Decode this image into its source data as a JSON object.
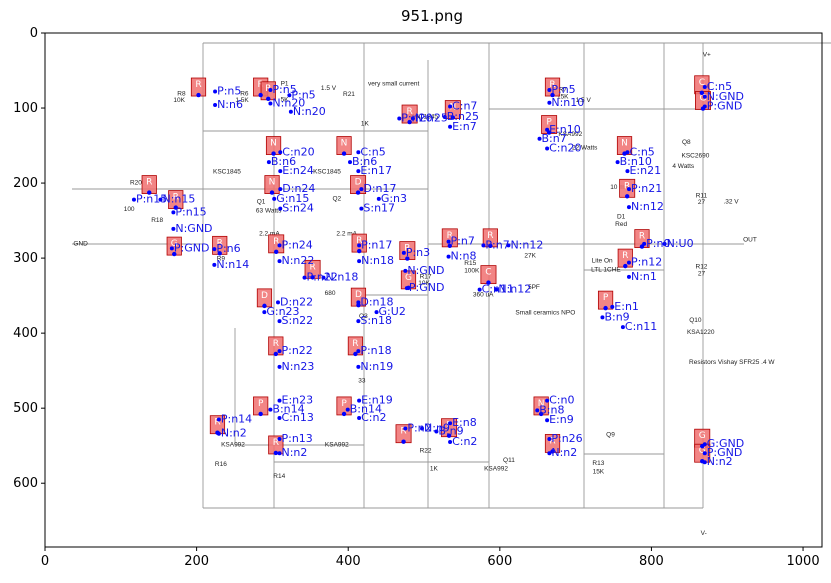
{
  "plot": {
    "title": "951.png",
    "x_ticks": [
      "0",
      "200",
      "400",
      "600",
      "800",
      "1000"
    ],
    "y_ticks": [
      "0",
      "100",
      "200",
      "300",
      "400",
      "500",
      "600"
    ],
    "xlim": [
      0,
      1025
    ],
    "ylim": [
      685,
      0
    ]
  },
  "schematic_text": [
    {
      "t": "R8",
      "x": 180,
      "y": 83
    },
    {
      "t": "10K",
      "x": 177,
      "y": 92
    },
    {
      "t": "R6",
      "x": 263,
      "y": 83
    },
    {
      "t": "1.5K",
      "x": 260,
      "y": 92
    },
    {
      "t": "P1",
      "x": 316,
      "y": 70
    },
    {
      "t": "5K",
      "x": 316,
      "y": 91
    },
    {
      "t": "1.5 V",
      "x": 374,
      "y": 76
    },
    {
      "t": "very small current",
      "x": 460,
      "y": 70
    },
    {
      "t": "R21",
      "x": 401,
      "y": 84
    },
    {
      "t": "1K",
      "x": 422,
      "y": 123
    },
    {
      "t": "KSC1845",
      "x": 500,
      "y": 114
    },
    {
      "t": "R7",
      "x": 683,
      "y": 78
    },
    {
      "t": "15K",
      "x": 683,
      "y": 87
    },
    {
      "t": "1.5 V",
      "x": 710,
      "y": 92
    },
    {
      "t": "V+",
      "x": 873,
      "y": 31
    },
    {
      "t": "KSA992",
      "x": 693,
      "y": 137
    },
    {
      "t": "22 Watts",
      "x": 712,
      "y": 155
    },
    {
      "t": "Q8",
      "x": 846,
      "y": 148
    },
    {
      "t": "KSC2690",
      "x": 858,
      "y": 166
    },
    {
      "t": "4 Watts",
      "x": 842,
      "y": 180
    },
    {
      "t": "KSC1845",
      "x": 240,
      "y": 187
    },
    {
      "t": "KSC1845",
      "x": 372,
      "y": 187
    },
    {
      "t": "R20",
      "x": 120,
      "y": 202
    },
    {
      "t": "100",
      "x": 111,
      "y": 237
    },
    {
      "t": "R18",
      "x": 148,
      "y": 252
    },
    {
      "t": "Q1",
      "x": 285,
      "y": 227
    },
    {
      "t": "63 Watts",
      "x": 295,
      "y": 239
    },
    {
      "t": "Q2",
      "x": 385,
      "y": 223
    },
    {
      "t": "10 mA",
      "x": 758,
      "y": 208
    },
    {
      "t": "R11",
      "x": 866,
      "y": 219
    },
    {
      "t": "27",
      "x": 866,
      "y": 228
    },
    {
      "t": ".32 V",
      "x": 905,
      "y": 227
    },
    {
      "t": "D1",
      "x": 760,
      "y": 247
    },
    {
      "t": "Red",
      "x": 760,
      "y": 257
    },
    {
      "t": "GND",
      "x": 47,
      "y": 283
    },
    {
      "t": "2.2 mA",
      "x": 296,
      "y": 270
    },
    {
      "t": "2.2 mA",
      "x": 398,
      "y": 270
    },
    {
      "t": "OUT",
      "x": 930,
      "y": 278
    },
    {
      "t": "R9",
      "x": 232,
      "y": 303
    },
    {
      "t": "R12",
      "x": 866,
      "y": 314
    },
    {
      "t": "27",
      "x": 866,
      "y": 323
    },
    {
      "t": "R15",
      "x": 561,
      "y": 309
    },
    {
      "t": "100K",
      "x": 563,
      "y": 319
    },
    {
      "t": "27K",
      "x": 640,
      "y": 299
    },
    {
      "t": "Lite On",
      "x": 735,
      "y": 306
    },
    {
      "t": "LTL 1CHE",
      "x": 740,
      "y": 318
    },
    {
      "t": "R17",
      "x": 502,
      "y": 327
    },
    {
      "t": "10K",
      "x": 500,
      "y": 336
    },
    {
      "t": "680",
      "x": 376,
      "y": 349
    },
    {
      "t": "360 uA",
      "x": 578,
      "y": 351
    },
    {
      "t": "5PF",
      "x": 645,
      "y": 341
    },
    {
      "t": "Small ceramics NPO",
      "x": 660,
      "y": 375
    },
    {
      "t": "Q3",
      "x": 420,
      "y": 380
    },
    {
      "t": "Q10",
      "x": 858,
      "y": 385
    },
    {
      "t": "KSA1220",
      "x": 865,
      "y": 401
    },
    {
      "t": "Resistors Vishay SFR25 .4 W",
      "x": 906,
      "y": 441
    },
    {
      "t": "33",
      "x": 418,
      "y": 466
    },
    {
      "t": "KSA992",
      "x": 248,
      "y": 551
    },
    {
      "t": "KSA992",
      "x": 385,
      "y": 551
    },
    {
      "t": "Q9",
      "x": 746,
      "y": 538
    },
    {
      "t": "R22",
      "x": 502,
      "y": 559
    },
    {
      "t": "1K",
      "x": 513,
      "y": 583
    },
    {
      "t": "Q11",
      "x": 612,
      "y": 572
    },
    {
      "t": "KSA992",
      "x": 595,
      "y": 583
    },
    {
      "t": "R13",
      "x": 730,
      "y": 576
    },
    {
      "t": "15K",
      "x": 730,
      "y": 587
    },
    {
      "t": "R16",
      "x": 232,
      "y": 577
    },
    {
      "t": "R14",
      "x": 309,
      "y": 593
    },
    {
      "t": "V-",
      "x": 869,
      "y": 669
    }
  ],
  "components": [
    {
      "label": "R",
      "x1": 193,
      "y1": 60,
      "x2": 212,
      "y2": 84
    },
    {
      "label": "R",
      "x1": 275,
      "y1": 60,
      "x2": 294,
      "y2": 84
    },
    {
      "label": "R",
      "x1": 285,
      "y1": 65,
      "x2": 304,
      "y2": 89
    },
    {
      "label": "R",
      "x1": 471,
      "y1": 96,
      "x2": 491,
      "y2": 120
    },
    {
      "label": "N",
      "x1": 528,
      "y1": 90,
      "x2": 548,
      "y2": 114
    },
    {
      "label": "R",
      "x1": 660,
      "y1": 60,
      "x2": 679,
      "y2": 84
    },
    {
      "label": "C",
      "x1": 857,
      "y1": 57,
      "x2": 876,
      "y2": 81
    },
    {
      "label": "G",
      "x1": 858,
      "y1": 78,
      "x2": 878,
      "y2": 102
    },
    {
      "label": "P",
      "x1": 655,
      "y1": 110,
      "x2": 675,
      "y2": 134
    },
    {
      "label": "N",
      "x1": 292,
      "y1": 138,
      "x2": 311,
      "y2": 162
    },
    {
      "label": "N",
      "x1": 385,
      "y1": 138,
      "x2": 404,
      "y2": 162
    },
    {
      "label": "N",
      "x1": 755,
      "y1": 138,
      "x2": 774,
      "y2": 162
    },
    {
      "label": "R",
      "x1": 128,
      "y1": 190,
      "x2": 147,
      "y2": 214
    },
    {
      "label": "R",
      "x1": 163,
      "y1": 210,
      "x2": 182,
      "y2": 234
    },
    {
      "label": "N",
      "x1": 290,
      "y1": 190,
      "x2": 309,
      "y2": 214
    },
    {
      "label": "D",
      "x1": 403,
      "y1": 190,
      "x2": 423,
      "y2": 214
    },
    {
      "label": "R",
      "x1": 758,
      "y1": 195,
      "x2": 778,
      "y2": 219
    },
    {
      "label": "R",
      "x1": 778,
      "y1": 262,
      "x2": 797,
      "y2": 286
    },
    {
      "label": "G",
      "x1": 161,
      "y1": 272,
      "x2": 180,
      "y2": 296
    },
    {
      "label": "R",
      "x1": 221,
      "y1": 271,
      "x2": 240,
      "y2": 295
    },
    {
      "label": "R",
      "x1": 295,
      "y1": 269,
      "x2": 315,
      "y2": 293
    },
    {
      "label": "R",
      "x1": 405,
      "y1": 268,
      "x2": 424,
      "y2": 292
    },
    {
      "label": "R",
      "x1": 524,
      "y1": 261,
      "x2": 544,
      "y2": 285
    },
    {
      "label": "R",
      "x1": 578,
      "y1": 261,
      "x2": 597,
      "y2": 285
    },
    {
      "label": "R",
      "x1": 468,
      "y1": 278,
      "x2": 488,
      "y2": 302
    },
    {
      "label": "R",
      "x1": 343,
      "y1": 303,
      "x2": 363,
      "y2": 327
    },
    {
      "label": "C",
      "x1": 575,
      "y1": 310,
      "x2": 595,
      "y2": 334
    },
    {
      "label": "R",
      "x1": 756,
      "y1": 288,
      "x2": 775,
      "y2": 312
    },
    {
      "label": "G",
      "x1": 470,
      "y1": 317,
      "x2": 489,
      "y2": 341
    },
    {
      "label": "D",
      "x1": 280,
      "y1": 341,
      "x2": 299,
      "y2": 365
    },
    {
      "label": "D",
      "x1": 404,
      "y1": 340,
      "x2": 423,
      "y2": 364
    },
    {
      "label": "P",
      "x1": 730,
      "y1": 344,
      "x2": 749,
      "y2": 368
    },
    {
      "label": "R",
      "x1": 295,
      "y1": 405,
      "x2": 314,
      "y2": 429
    },
    {
      "label": "R",
      "x1": 400,
      "y1": 405,
      "x2": 419,
      "y2": 429
    },
    {
      "label": "P",
      "x1": 275,
      "y1": 485,
      "x2": 294,
      "y2": 509
    },
    {
      "label": "P",
      "x1": 385,
      "y1": 485,
      "x2": 404,
      "y2": 509
    },
    {
      "label": "N",
      "x1": 645,
      "y1": 485,
      "x2": 664,
      "y2": 509
    },
    {
      "label": "R",
      "x1": 218,
      "y1": 510,
      "x2": 237,
      "y2": 534
    },
    {
      "label": "R",
      "x1": 463,
      "y1": 522,
      "x2": 483,
      "y2": 546
    },
    {
      "label": "P",
      "x1": 523,
      "y1": 514,
      "x2": 543,
      "y2": 538
    },
    {
      "label": "R",
      "x1": 295,
      "y1": 537,
      "x2": 314,
      "y2": 561
    },
    {
      "label": "R",
      "x1": 660,
      "y1": 535,
      "x2": 679,
      "y2": 559
    },
    {
      "label": "G",
      "x1": 857,
      "y1": 528,
      "x2": 877,
      "y2": 552
    },
    {
      "label": "G",
      "x1": 857,
      "y1": 548,
      "x2": 877,
      "y2": 572
    }
  ],
  "pin_labels": [
    {
      "t": "P:n5",
      "x": 227,
      "y": 82
    },
    {
      "t": "N:n6",
      "x": 227,
      "y": 100
    },
    {
      "t": "P:n5",
      "x": 300,
      "y": 80
    },
    {
      "t": "P:n5",
      "x": 325,
      "y": 87
    },
    {
      "t": "N:n20",
      "x": 300,
      "y": 98
    },
    {
      "t": "N:n20",
      "x": 327,
      "y": 109
    },
    {
      "t": "P:n20",
      "x": 470,
      "y": 118
    },
    {
      "t": "N:n25",
      "x": 488,
      "y": 118
    },
    {
      "t": "C:n7",
      "x": 537,
      "y": 102
    },
    {
      "t": "B:n25",
      "x": 530,
      "y": 116
    },
    {
      "t": "E:n7",
      "x": 537,
      "y": 129
    },
    {
      "t": "P:n5",
      "x": 668,
      "y": 80
    },
    {
      "t": "N:n10",
      "x": 668,
      "y": 97
    },
    {
      "t": "C:n5",
      "x": 873,
      "y": 76
    },
    {
      "t": "N:GND",
      "x": 873,
      "y": 89
    },
    {
      "t": "P:GND",
      "x": 873,
      "y": 102
    },
    {
      "t": "E:n10",
      "x": 665,
      "y": 133
    },
    {
      "t": "B:n7",
      "x": 655,
      "y": 145
    },
    {
      "t": "C:n20",
      "x": 665,
      "y": 158
    },
    {
      "t": "C:n20",
      "x": 313,
      "y": 163
    },
    {
      "t": "B:n6",
      "x": 298,
      "y": 176
    },
    {
      "t": "E:n24",
      "x": 313,
      "y": 188
    },
    {
      "t": "C:n5",
      "x": 416,
      "y": 163
    },
    {
      "t": "B:n6",
      "x": 405,
      "y": 176
    },
    {
      "t": "E:n17",
      "x": 416,
      "y": 188
    },
    {
      "t": "C:n5",
      "x": 771,
      "y": 163
    },
    {
      "t": "B:n10",
      "x": 758,
      "y": 176
    },
    {
      "t": "E:n21",
      "x": 771,
      "y": 188
    },
    {
      "t": "D:n24",
      "x": 313,
      "y": 212
    },
    {
      "t": "G:n15",
      "x": 305,
      "y": 225
    },
    {
      "t": "S:n24",
      "x": 313,
      "y": 238
    },
    {
      "t": "D:n17",
      "x": 420,
      "y": 212
    },
    {
      "t": "G:n3",
      "x": 443,
      "y": 225
    },
    {
      "t": "S:n17",
      "x": 420,
      "y": 238
    },
    {
      "t": "P:n21",
      "x": 773,
      "y": 212
    },
    {
      "t": "N:n12",
      "x": 773,
      "y": 236
    },
    {
      "t": "P:n15",
      "x": 120,
      "y": 226
    },
    {
      "t": "N:n15",
      "x": 155,
      "y": 226
    },
    {
      "t": "P:n15",
      "x": 172,
      "y": 243
    },
    {
      "t": "N:GND",
      "x": 172,
      "y": 265
    },
    {
      "t": "P:n6",
      "x": 226,
      "y": 292
    },
    {
      "t": "N:n14",
      "x": 226,
      "y": 313
    },
    {
      "t": "P:GND",
      "x": 170,
      "y": 291
    },
    {
      "t": "P:n24",
      "x": 312,
      "y": 287
    },
    {
      "t": "N:n22",
      "x": 312,
      "y": 308
    },
    {
      "t": "P:n17",
      "x": 417,
      "y": 287
    },
    {
      "t": "N:n18",
      "x": 417,
      "y": 308
    },
    {
      "t": "P:n7",
      "x": 535,
      "y": 282
    },
    {
      "t": "N:n8",
      "x": 535,
      "y": 302
    },
    {
      "t": "P:n7",
      "x": 581,
      "y": 287
    },
    {
      "t": "N:n12",
      "x": 614,
      "y": 287
    },
    {
      "t": "P:n3",
      "x": 476,
      "y": 297
    },
    {
      "t": "N:GND",
      "x": 478,
      "y": 321
    },
    {
      "t": "P:n12",
      "x": 773,
      "y": 310
    },
    {
      "t": "N:n1",
      "x": 773,
      "y": 329
    },
    {
      "t": "P:n0",
      "x": 793,
      "y": 285
    },
    {
      "t": "N:U0",
      "x": 820,
      "y": 285
    },
    {
      "t": "P:n22",
      "x": 345,
      "y": 330
    },
    {
      "t": "N:n18",
      "x": 370,
      "y": 330
    },
    {
      "t": "C:n11",
      "x": 576,
      "y": 346
    },
    {
      "t": "N:n12",
      "x": 598,
      "y": 346
    },
    {
      "t": "P:GND",
      "x": 480,
      "y": 344
    },
    {
      "t": "D:n22",
      "x": 310,
      "y": 363
    },
    {
      "t": "G:n23",
      "x": 292,
      "y": 376
    },
    {
      "t": "S:n22",
      "x": 312,
      "y": 388
    },
    {
      "t": "D:n18",
      "x": 416,
      "y": 363
    },
    {
      "t": "G:U2",
      "x": 440,
      "y": 376
    },
    {
      "t": "S:n18",
      "x": 416,
      "y": 388
    },
    {
      "t": "E:n1",
      "x": 751,
      "y": 369
    },
    {
      "t": "B:n9",
      "x": 738,
      "y": 383
    },
    {
      "t": "C:n11",
      "x": 765,
      "y": 396
    },
    {
      "t": "P:n22",
      "x": 312,
      "y": 428
    },
    {
      "t": "N:n23",
      "x": 312,
      "y": 449
    },
    {
      "t": "P:n18",
      "x": 416,
      "y": 428
    },
    {
      "t": "N:n19",
      "x": 416,
      "y": 449
    },
    {
      "t": "E:n23",
      "x": 312,
      "y": 494
    },
    {
      "t": "B:n14",
      "x": 300,
      "y": 506
    },
    {
      "t": "C:n13",
      "x": 312,
      "y": 517
    },
    {
      "t": "E:n19",
      "x": 417,
      "y": 494
    },
    {
      "t": "B:n14",
      "x": 402,
      "y": 506
    },
    {
      "t": "C:n2",
      "x": 417,
      "y": 517
    },
    {
      "t": "C:n0",
      "x": 665,
      "y": 494
    },
    {
      "t": "B:n8",
      "x": 652,
      "y": 507
    },
    {
      "t": "E:n9",
      "x": 665,
      "y": 520
    },
    {
      "t": "P:n14",
      "x": 232,
      "y": 519
    },
    {
      "t": "N:n2",
      "x": 232,
      "y": 538
    },
    {
      "t": "P:n13",
      "x": 312,
      "y": 545
    },
    {
      "t": "N:n2",
      "x": 312,
      "y": 564
    },
    {
      "t": "E:n8",
      "x": 537,
      "y": 524
    },
    {
      "t": "P:n2",
      "x": 478,
      "y": 531
    },
    {
      "t": "N:n9",
      "x": 500,
      "y": 531
    },
    {
      "t": "B:n9",
      "x": 519,
      "y": 535
    },
    {
      "t": "C:n2",
      "x": 537,
      "y": 549
    },
    {
      "t": "P:n26",
      "x": 668,
      "y": 545
    },
    {
      "t": "N:n2",
      "x": 668,
      "y": 564
    },
    {
      "t": "G:GND",
      "x": 873,
      "y": 552
    },
    {
      "t": "P:GND",
      "x": 873,
      "y": 564
    },
    {
      "t": "N:n2",
      "x": 873,
      "y": 576
    }
  ]
}
